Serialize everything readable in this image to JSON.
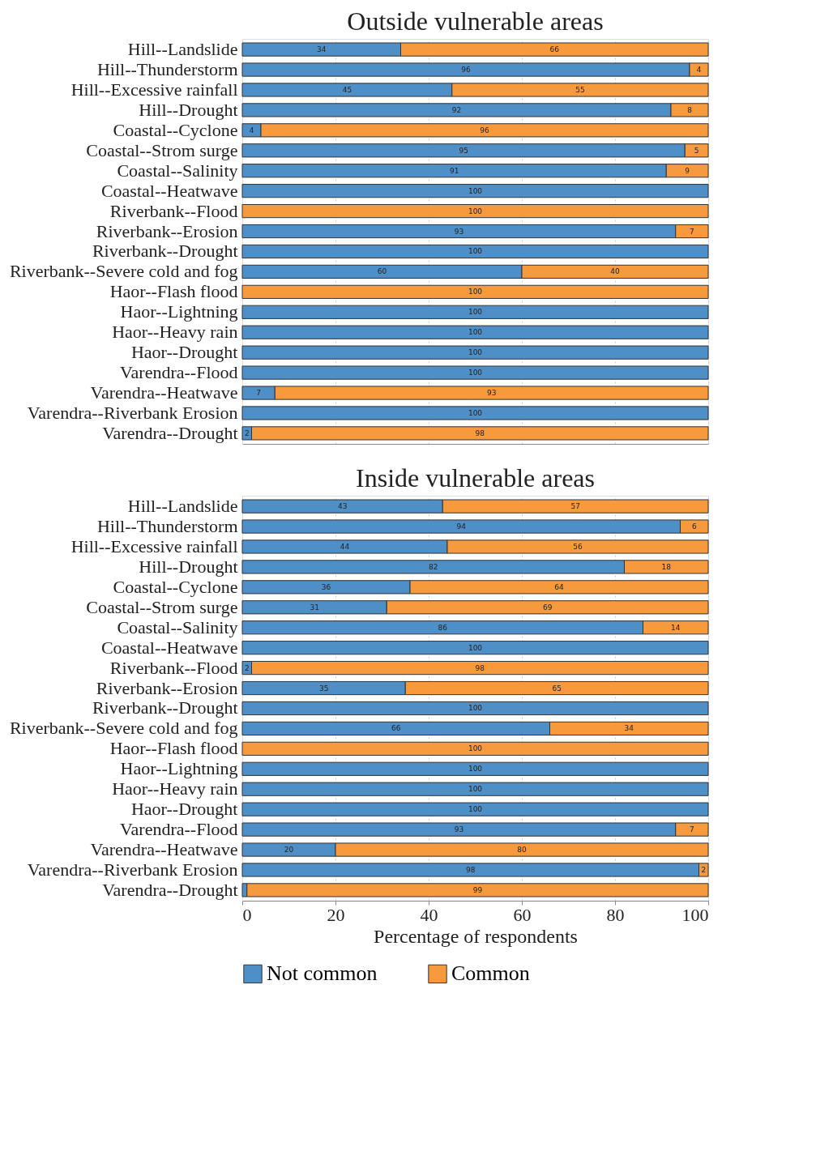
{
  "chart_data": [
    {
      "type": "bar",
      "orientation": "horizontal",
      "stacked": true,
      "title": "Outside vulnerable areas",
      "categories": [
        "Hill--Landslide",
        "Hill--Thunderstorm",
        "Hill--Excessive rainfall",
        "Hill--Drought",
        "Coastal--Cyclone",
        "Coastal--Strom surge",
        "Coastal--Salinity",
        "Coastal--Heatwave",
        "Riverbank--Flood",
        "Riverbank--Erosion",
        "Riverbank--Drought",
        "Riverbank--Severe cold and fog",
        "Haor--Flash flood",
        "Haor--Lightning",
        "Haor--Heavy rain",
        "Haor--Drought",
        "Varendra--Flood",
        "Varendra--Heatwave",
        "Varendra--Riverbank Erosion",
        "Varendra--Drought"
      ],
      "series": [
        {
          "name": "Not common",
          "color": "#4f8fc8",
          "values": [
            34,
            96,
            45,
            92,
            4,
            95,
            91,
            100,
            0,
            93,
            100,
            60,
            0,
            100,
            100,
            100,
            100,
            7,
            100,
            2
          ],
          "value_labels": [
            "34",
            "96",
            "45",
            "92",
            "4",
            "95",
            "91",
            "100",
            null,
            "93",
            "100",
            "60",
            null,
            "100",
            "100",
            "100",
            "100",
            "7",
            "100",
            "2"
          ]
        },
        {
          "name": "Common",
          "color": "#f79a3e",
          "values": [
            66,
            4,
            55,
            8,
            96,
            5,
            9,
            0,
            100,
            7,
            0,
            40,
            100,
            0,
            0,
            0,
            0,
            93,
            0,
            98
          ],
          "value_labels": [
            "66",
            "4",
            "55",
            "8",
            "96",
            "5",
            "9",
            null,
            "100",
            "7",
            null,
            "40",
            "100",
            null,
            null,
            null,
            null,
            "93",
            null,
            "98"
          ]
        }
      ],
      "xlim": [
        0,
        100
      ],
      "xticks": [
        0,
        20,
        40,
        60,
        80,
        100
      ],
      "tick_labels": "y",
      "grid": "x",
      "legend": "bottom"
    },
    {
      "type": "bar",
      "orientation": "horizontal",
      "stacked": true,
      "title": "Inside vulnerable areas",
      "xlabel": "Percentage of respondents",
      "categories": [
        "Hill--Landslide",
        "Hill--Thunderstorm",
        "Hill--Excessive rainfall",
        "Hill--Drought",
        "Coastal--Cyclone",
        "Coastal--Strom surge",
        "Coastal--Salinity",
        "Coastal--Heatwave",
        "Riverbank--Flood",
        "Riverbank--Erosion",
        "Riverbank--Drought",
        "Riverbank--Severe cold and fog",
        "Haor--Flash flood",
        "Haor--Lightning",
        "Haor--Heavy rain",
        "Haor--Drought",
        "Varendra--Flood",
        "Varendra--Heatwave",
        "Varendra--Riverbank Erosion",
        "Varendra--Drought"
      ],
      "series": [
        {
          "name": "Not common",
          "color": "#4f8fc8",
          "values": [
            43,
            94,
            44,
            82,
            36,
            31,
            86,
            100,
            2,
            35,
            100,
            66,
            0,
            100,
            100,
            100,
            93,
            20,
            98,
            1
          ],
          "value_labels": [
            "43",
            "94",
            "44",
            "82",
            "36",
            "31",
            "86",
            "100",
            "2",
            "35",
            "100",
            "66",
            null,
            "100",
            "100",
            "100",
            "93",
            "20",
            "98",
            null
          ]
        },
        {
          "name": "Common",
          "color": "#f79a3e",
          "values": [
            57,
            6,
            56,
            18,
            64,
            69,
            14,
            0,
            98,
            65,
            0,
            34,
            100,
            0,
            0,
            0,
            7,
            80,
            2,
            99
          ],
          "value_labels": [
            "57",
            "6",
            "56",
            "18",
            "64",
            "69",
            "14",
            null,
            "98",
            "65",
            null,
            "34",
            "100",
            null,
            null,
            null,
            "7",
            "80",
            "2",
            "99"
          ]
        }
      ],
      "xlim": [
        0,
        100
      ],
      "xticks": [
        0,
        20,
        40,
        60,
        80,
        100
      ],
      "grid": "x",
      "legend": "bottom"
    }
  ]
}
